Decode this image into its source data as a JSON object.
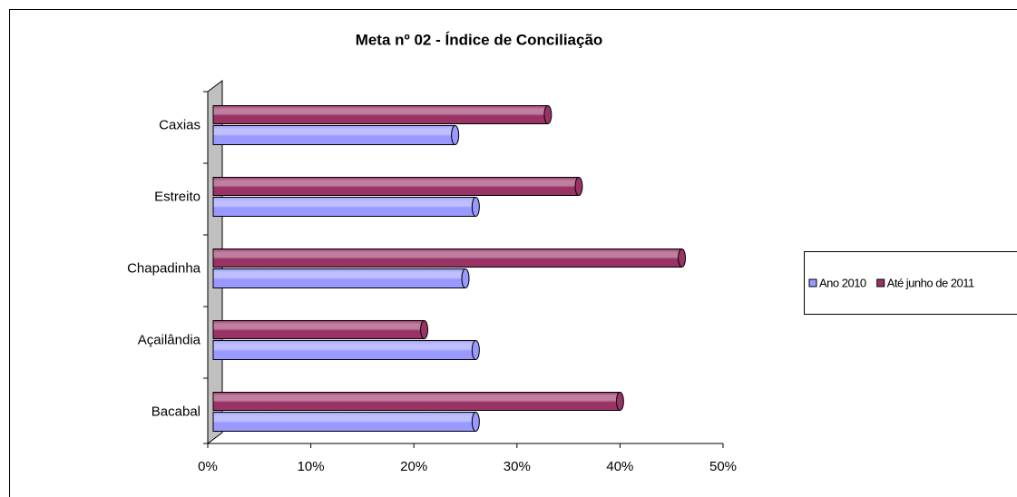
{
  "chart_data": {
    "type": "bar",
    "orientation": "horizontal",
    "title": "Meta nº 02 - Índice de Conciliação",
    "categories": [
      "Caxias",
      "Estreito",
      "Chapadinha",
      "Açailândia",
      "Bacabal"
    ],
    "series": [
      {
        "name": "Ano 2010",
        "color": "#9999ff",
        "values": [
          24,
          26,
          25,
          26,
          26
        ]
      },
      {
        "name": "Até junho de 2011",
        "color": "#993366",
        "values": [
          33,
          36,
          46,
          21,
          40
        ]
      }
    ],
    "xlim": [
      0,
      50
    ],
    "xticks": [
      {
        "value": 0,
        "label": "0%"
      },
      {
        "value": 10,
        "label": "10%"
      },
      {
        "value": 20,
        "label": "20%"
      },
      {
        "value": 30,
        "label": "30%"
      },
      {
        "value": 40,
        "label": "40%"
      },
      {
        "value": 50,
        "label": "50%"
      }
    ],
    "legend": "right"
  }
}
